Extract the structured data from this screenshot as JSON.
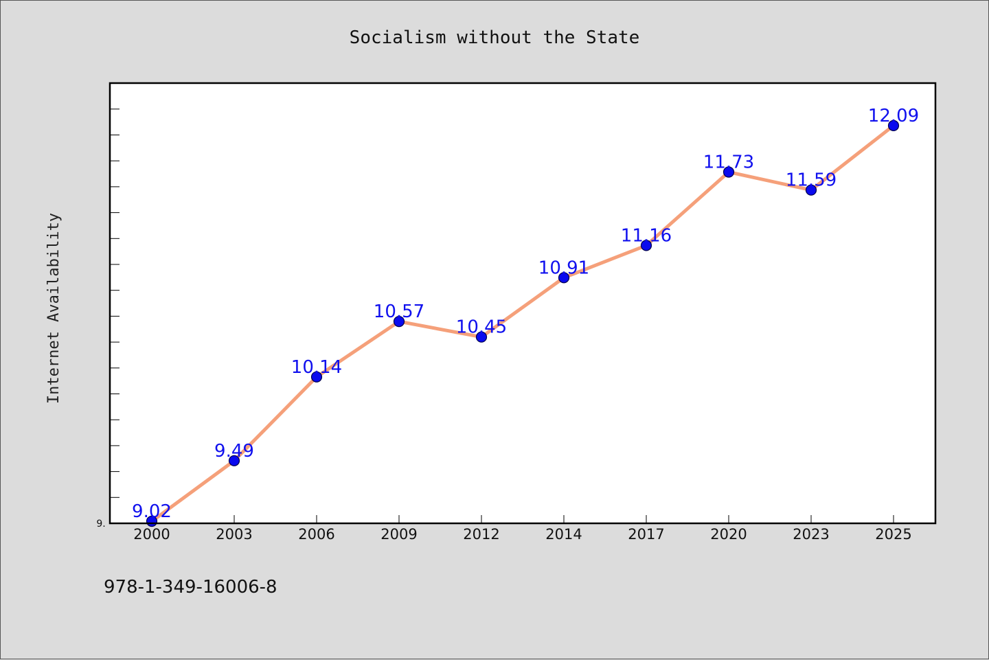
{
  "chart_data": {
    "type": "line",
    "title": "Socialism without the State",
    "xlabel": "",
    "ylabel": "Internet Availability",
    "categories": [
      "2000",
      "2003",
      "2006",
      "2009",
      "2012",
      "2014",
      "2017",
      "2020",
      "2023",
      "2025"
    ],
    "series": [
      {
        "values": [
          9.02,
          9.49,
          10.14,
          10.57,
          10.45,
          10.91,
          11.16,
          11.73,
          11.59,
          12.09
        ],
        "data_labels": [
          "9.02",
          "9.49",
          "10.14",
          "10.57",
          "10.45",
          "10.91",
          "11.16",
          "11.73",
          "11.59",
          "12.09"
        ]
      }
    ],
    "ylim": [
      9.02,
      12.42
    ],
    "y_tick_label": "9.",
    "line_color": "#f5a07a",
    "marker_color": "#0a0aee",
    "label_color": "#1010ee",
    "grid": false,
    "legend": "none"
  },
  "footer": {
    "isbn": "978-1-349-16006-8"
  }
}
